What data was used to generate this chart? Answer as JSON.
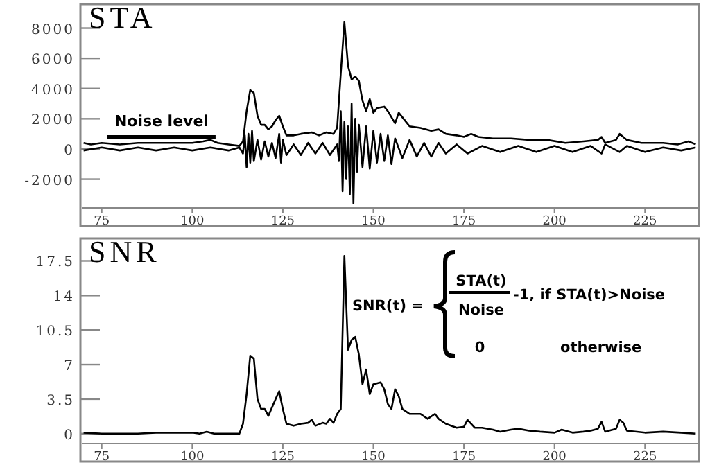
{
  "chart_data": [
    {
      "type": "line",
      "title": "STA",
      "xlim": [
        69.5,
        239.5
      ],
      "xticks": [
        75,
        100,
        125,
        150,
        175,
        200,
        225
      ],
      "ylim": [
        -3900,
        9400
      ],
      "yticks": [
        -2000,
        0,
        2000,
        4000,
        6000,
        8000
      ],
      "grid": false,
      "marker": "none",
      "line_style": "solid",
      "annotations": [
        {
          "text": "Noise level",
          "x": 91.5,
          "y": 800
        }
      ],
      "series": [
        {
          "color": "#000000",
          "x": [
            70,
            72,
            75,
            80,
            85,
            90,
            95,
            100,
            103,
            105,
            107,
            110,
            113,
            114,
            115,
            116,
            117,
            118,
            119,
            120,
            121,
            122,
            123,
            124,
            125,
            126,
            128,
            130,
            133,
            135,
            137,
            139,
            140,
            141,
            142,
            143,
            144,
            145,
            146,
            147,
            148,
            149,
            150,
            151,
            153,
            154,
            155,
            156,
            157,
            158,
            160,
            163,
            166,
            168,
            170,
            173,
            175,
            177,
            179,
            183,
            188,
            193,
            198,
            203,
            208,
            212,
            213,
            214,
            217,
            218,
            220,
            224,
            230,
            234,
            237,
            239
          ],
          "values": [
            400,
            300,
            400,
            300,
            400,
            400,
            400,
            400,
            500,
            600,
            400,
            300,
            200,
            500,
            2500,
            3900,
            3700,
            2200,
            1600,
            1600,
            1300,
            1500,
            1900,
            2200,
            1500,
            900,
            900,
            1000,
            1100,
            900,
            1100,
            1000,
            1400,
            5000,
            8400,
            5500,
            4600,
            4800,
            4500,
            3200,
            2500,
            3300,
            2400,
            2700,
            2800,
            2500,
            2100,
            1700,
            2400,
            2100,
            1500,
            1400,
            1200,
            1300,
            1000,
            900,
            800,
            1000,
            800,
            700,
            700,
            600,
            600,
            400,
            500,
            600,
            800,
            400,
            600,
            1000,
            600,
            400,
            400,
            300,
            500,
            300
          ]
        },
        {
          "color": "#000000",
          "x": [
            70,
            75,
            80,
            85,
            90,
            95,
            100,
            105,
            110,
            113,
            114,
            114.5,
            115,
            115.5,
            116,
            116.5,
            117,
            118,
            119,
            120,
            121,
            122,
            123,
            124,
            124.5,
            125,
            126,
            128,
            130,
            132,
            134,
            136,
            138,
            140,
            140.5,
            141,
            141.5,
            142,
            142.5,
            143,
            143.5,
            144,
            144.5,
            145,
            145.5,
            146,
            147,
            148,
            149,
            150,
            151,
            152,
            153,
            154,
            155,
            156,
            158,
            160,
            162,
            164,
            166,
            168,
            170,
            173,
            176,
            180,
            185,
            190,
            195,
            200,
            205,
            210,
            213,
            214,
            218,
            220,
            225,
            230,
            235,
            239
          ],
          "values": [
            -100,
            100,
            -100,
            100,
            -100,
            100,
            -100,
            100,
            -100,
            100,
            -300,
            900,
            -1200,
            1000,
            -900,
            1200,
            -800,
            600,
            -700,
            500,
            -500,
            400,
            -600,
            1000,
            -900,
            600,
            -400,
            300,
            -400,
            400,
            -300,
            400,
            -400,
            300,
            -800,
            2500,
            -2800,
            1800,
            -2000,
            1500,
            -3000,
            3000,
            -3600,
            2000,
            -1500,
            1600,
            -1200,
            1500,
            -1300,
            1200,
            -900,
            1000,
            -800,
            900,
            -1000,
            700,
            -600,
            600,
            -500,
            400,
            -500,
            400,
            -300,
            300,
            -300,
            200,
            -200,
            200,
            -200,
            200,
            -200,
            200,
            -300,
            300,
            -200,
            200,
            -200,
            100,
            -100,
            100
          ]
        }
      ]
    },
    {
      "type": "line",
      "title": "SNR",
      "xlim": [
        69.5,
        239.5
      ],
      "xticks": [
        75,
        100,
        125,
        150,
        175,
        200,
        225
      ],
      "ylim": [
        -1,
        19.5
      ],
      "yticks": [
        0,
        3.5,
        7,
        10.5,
        14,
        17.5
      ],
      "grid": false,
      "marker": "none",
      "line_style": "solid",
      "annotations": [
        "SNR(t) =",
        "STA(t)",
        "Noise",
        "-1,  if STA(t)>Noise",
        "0",
        "otherwise"
      ],
      "series": [
        {
          "color": "#000000",
          "x": [
            70,
            75,
            85,
            90,
            100,
            102,
            104,
            106,
            113,
            114,
            115,
            116,
            117,
            118,
            119,
            120,
            121,
            123,
            124,
            125,
            126,
            128,
            130,
            132,
            133,
            134,
            136,
            137,
            138,
            139,
            140,
            141,
            142,
            143,
            144,
            145,
            146,
            147,
            148,
            149,
            150,
            152,
            153,
            154,
            155,
            156,
            157,
            158,
            160,
            163,
            165,
            167,
            168,
            170,
            173,
            175,
            176,
            178,
            180,
            183,
            185,
            188,
            190,
            193,
            196,
            200,
            202,
            205,
            208,
            210,
            212,
            213,
            214,
            217,
            218,
            219,
            220,
            225,
            230,
            235,
            239
          ],
          "values": [
            0.1,
            0,
            0,
            0.1,
            0.1,
            0,
            0.2,
            0,
            0,
            1,
            4,
            7.9,
            7.6,
            3.5,
            2.5,
            2.5,
            1.8,
            3.5,
            4.3,
            2.5,
            1,
            0.8,
            1,
            1.1,
            1.4,
            0.8,
            1.1,
            1,
            1.5,
            1.1,
            2,
            2.5,
            18,
            8.5,
            9.5,
            9.8,
            8,
            5,
            6.5,
            4,
            5,
            5.2,
            4.5,
            3,
            2.5,
            4.5,
            3.8,
            2.5,
            2,
            2,
            1.5,
            2,
            1.5,
            1,
            0.6,
            0.7,
            1.4,
            0.6,
            0.6,
            0.4,
            0.2,
            0.4,
            0.5,
            0.3,
            0.2,
            0.1,
            0.4,
            0.1,
            0.2,
            0.3,
            0.5,
            1.2,
            0.2,
            0.5,
            1.4,
            1.1,
            0.3,
            0.1,
            0.2,
            0.1,
            0
          ]
        }
      ]
    }
  ]
}
